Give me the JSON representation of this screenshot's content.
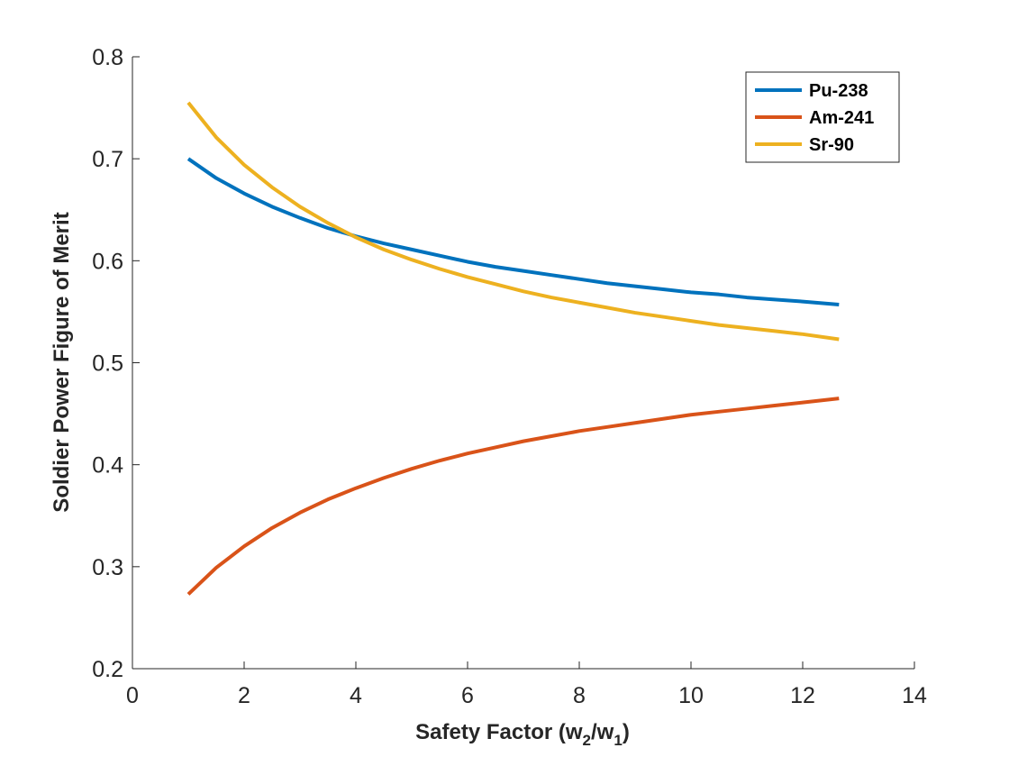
{
  "chart_data": {
    "type": "line",
    "title": "",
    "xlabel": {
      "main": "Safety Factor (w",
      "sub1": "2",
      "mid": "/w",
      "sub2": "1",
      "end": ")"
    },
    "ylabel": "Soldier Power Figure of Merit",
    "xlim": [
      0,
      14
    ],
    "ylim": [
      0.2,
      0.8
    ],
    "xticks": [
      "0",
      "2",
      "4",
      "6",
      "8",
      "10",
      "12",
      "14"
    ],
    "yticks": [
      "0.2",
      "0.3",
      "0.4",
      "0.5",
      "0.6",
      "0.7",
      "0.8"
    ],
    "x": [
      1,
      1.5,
      2,
      2.5,
      3,
      3.5,
      4,
      4.5,
      5,
      5.5,
      6,
      6.5,
      7,
      7.5,
      8,
      8.5,
      9,
      9.5,
      10,
      10.5,
      11,
      11.5,
      12,
      12.65
    ],
    "series": [
      {
        "name": "Pu-238",
        "color": "#0072BD",
        "values": [
          0.7,
          0.681,
          0.666,
          0.653,
          0.642,
          0.632,
          0.624,
          0.617,
          0.611,
          0.605,
          0.599,
          0.594,
          0.59,
          0.586,
          0.582,
          0.578,
          0.575,
          0.572,
          0.569,
          0.567,
          0.564,
          0.562,
          0.56,
          0.557
        ]
      },
      {
        "name": "Am-241",
        "color": "#D95319",
        "values": [
          0.273,
          0.299,
          0.32,
          0.338,
          0.353,
          0.366,
          0.377,
          0.387,
          0.396,
          0.404,
          0.411,
          0.417,
          0.423,
          0.428,
          0.433,
          0.437,
          0.441,
          0.445,
          0.449,
          0.452,
          0.455,
          0.458,
          0.461,
          0.465
        ]
      },
      {
        "name": "Sr-90",
        "color": "#EDB120",
        "values": [
          0.755,
          0.721,
          0.694,
          0.672,
          0.653,
          0.637,
          0.623,
          0.611,
          0.601,
          0.592,
          0.584,
          0.577,
          0.57,
          0.564,
          0.559,
          0.554,
          0.549,
          0.545,
          0.541,
          0.537,
          0.534,
          0.531,
          0.528,
          0.523
        ]
      }
    ],
    "grid": false,
    "legend_position": "top-right"
  }
}
